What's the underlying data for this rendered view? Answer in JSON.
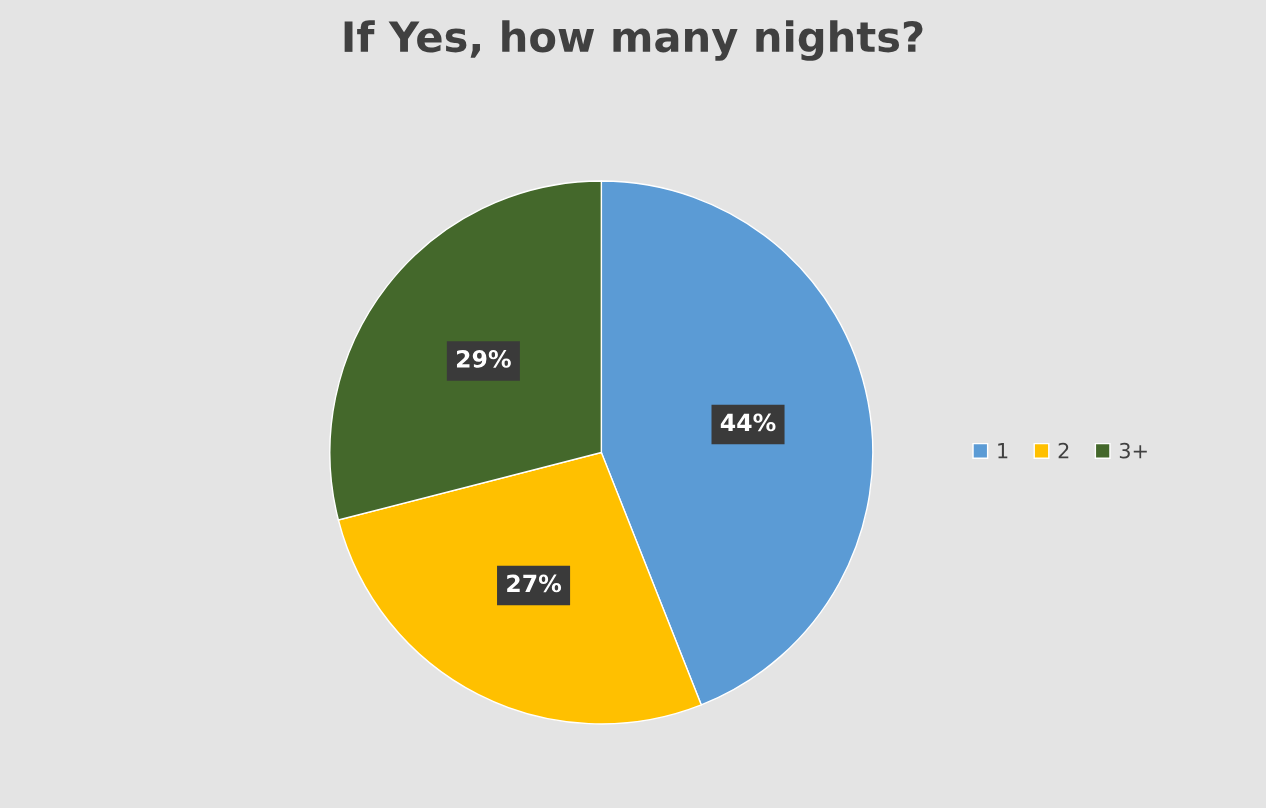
{
  "chart_data": {
    "type": "pie",
    "title": "If Yes, how many nights?",
    "categories": [
      "1",
      "2",
      "3+"
    ],
    "values": [
      44,
      27,
      29
    ],
    "colors": [
      "#5b9bd5",
      "#ffc000",
      "#44682b"
    ],
    "value_labels": [
      "44%",
      "27%",
      "29%"
    ],
    "legend": "right"
  }
}
